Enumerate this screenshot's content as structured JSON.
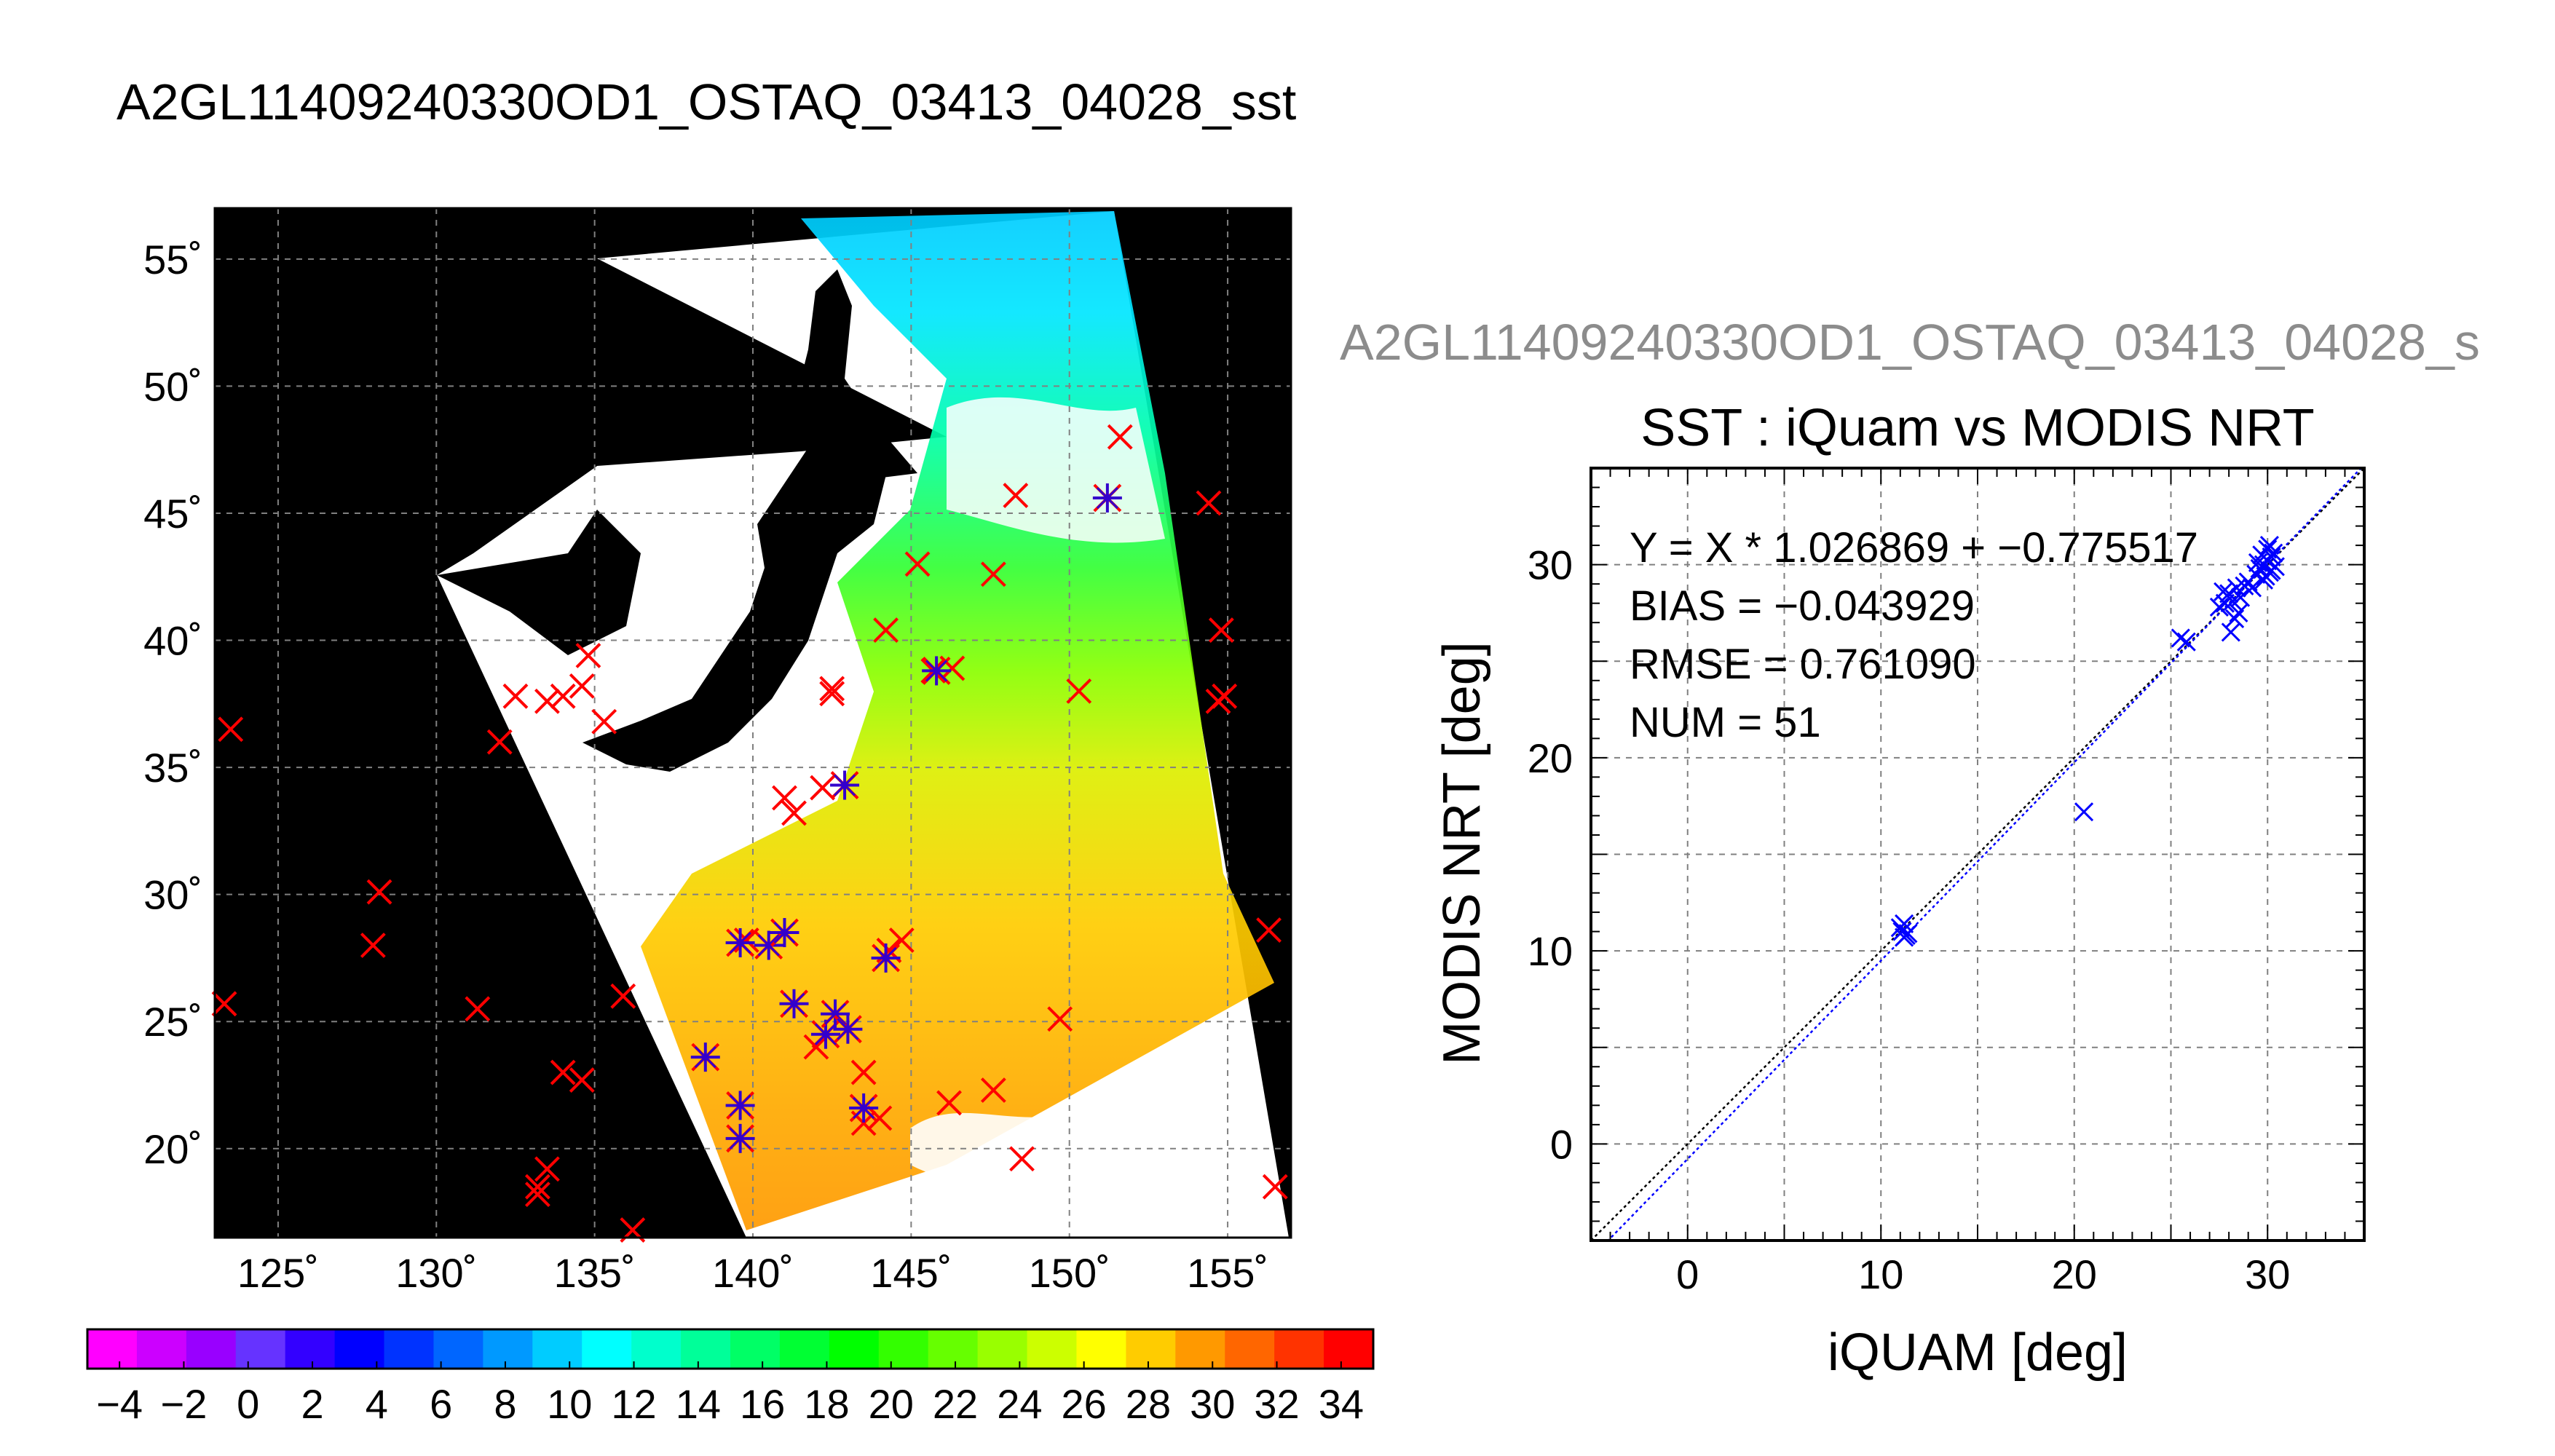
{
  "page_title": "A2GL11409240330OD1_OSTAQ_03413_04028_sst",
  "grey_title": "A2GL11409240330OD1_OSTAQ_03413_04028_s",
  "colors": {
    "background": "#ffffff",
    "map_background": "#000000",
    "land": "#000000",
    "cloud": "#ffffff",
    "grid": "#808080",
    "red_marker": "#ff0000",
    "blue_marker": "#0000ff",
    "fit_line": "#0000ff",
    "identity_line": "#000000"
  },
  "chart_data": [
    {
      "type": "map",
      "lon_ticks": [
        125,
        130,
        135,
        140,
        145,
        150,
        155
      ],
      "lat_ticks": [
        20,
        25,
        30,
        35,
        40,
        45,
        50,
        55
      ],
      "lon_tick_labels": [
        "125˚",
        "130˚",
        "135˚",
        "140˚",
        "145˚",
        "150˚",
        "155˚"
      ],
      "lat_tick_labels": [
        "20˚",
        "25˚",
        "30˚",
        "35˚",
        "40˚",
        "45˚",
        "50˚",
        "55˚"
      ],
      "lon_range": [
        123,
        157
      ],
      "lat_range": [
        16.5,
        57
      ],
      "grid": true,
      "colorbar": {
        "range": [
          -5,
          35
        ],
        "tick_values": [
          -4,
          -2,
          0,
          2,
          4,
          6,
          8,
          10,
          12,
          14,
          16,
          18,
          20,
          22,
          24,
          26,
          28,
          30,
          32,
          34
        ],
        "tick_labels": [
          "−4",
          "−2",
          "0",
          "2",
          "4",
          "6",
          "8",
          "10",
          "12",
          "14",
          "16",
          "18",
          "20",
          "22",
          "24",
          "26",
          "28",
          "30",
          "32",
          "34"
        ],
        "colors": [
          "#ff00ff",
          "#cc00ff",
          "#9900ff",
          "#6633ff",
          "#3300ff",
          "#0000ff",
          "#0033ff",
          "#0066ff",
          "#0099ff",
          "#00ccff",
          "#00ffff",
          "#00ffcc",
          "#00ff99",
          "#00ff66",
          "#00ff33",
          "#00ff00",
          "#33ff00",
          "#66ff00",
          "#99ff00",
          "#ccff00",
          "#ffff00",
          "#ffcc00",
          "#ff9900",
          "#ff6600",
          "#ff3300",
          "#ff0000"
        ]
      },
      "red_markers": [
        [
          123.5,
          36.5
        ],
        [
          123.3,
          25.7
        ],
        [
          128.2,
          30.1
        ],
        [
          128,
          28
        ],
        [
          131.3,
          25.5
        ],
        [
          132,
          36
        ],
        [
          132.5,
          37.8
        ],
        [
          133.5,
          37.6
        ],
        [
          134,
          37.8
        ],
        [
          134.6,
          38.2
        ],
        [
          134.8,
          39.4
        ],
        [
          135.3,
          36.8
        ],
        [
          133.2,
          18.2
        ],
        [
          133.2,
          18.5
        ],
        [
          133.5,
          19.2
        ],
        [
          134,
          23
        ],
        [
          134.6,
          22.7
        ],
        [
          135.9,
          26
        ],
        [
          136.2,
          16.8
        ],
        [
          139.8,
          28.2
        ],
        [
          141,
          33.8
        ],
        [
          141.3,
          33.2
        ],
        [
          142.5,
          38.1
        ],
        [
          142.5,
          37.9
        ],
        [
          142,
          24
        ],
        [
          143.5,
          23
        ],
        [
          143.5,
          21
        ],
        [
          144,
          21.2
        ],
        [
          144.3,
          27.8
        ],
        [
          144.7,
          28.2
        ],
        [
          144.2,
          40.4
        ],
        [
          145.2,
          43
        ],
        [
          145.7,
          38.8
        ],
        [
          146.3,
          38.9
        ],
        [
          147.6,
          42.6
        ],
        [
          146.2,
          21.8
        ],
        [
          147.6,
          22.3
        ],
        [
          148.3,
          45.7
        ],
        [
          148.5,
          19.6
        ],
        [
          149.7,
          25.1
        ],
        [
          150.3,
          38
        ],
        [
          151.6,
          48
        ],
        [
          154.4,
          45.4
        ],
        [
          154.8,
          40.4
        ],
        [
          154.7,
          37.6
        ],
        [
          154.9,
          37.8
        ],
        [
          156.3,
          28.6
        ],
        [
          156.5,
          18.5
        ],
        [
          142.2,
          34.2
        ]
      ],
      "blue_markers": [
        [
          139.6,
          28.1
        ],
        [
          140.5,
          28
        ],
        [
          141,
          28.5
        ],
        [
          141.3,
          25.7
        ],
        [
          142.3,
          24.5
        ],
        [
          142.6,
          25.3
        ],
        [
          143,
          24.7
        ],
        [
          142.9,
          34.3
        ],
        [
          138.5,
          23.6
        ],
        [
          139.6,
          21.7
        ],
        [
          139.6,
          20.4
        ],
        [
          143.5,
          21.6
        ],
        [
          144.2,
          27.5
        ],
        [
          145.8,
          38.8
        ],
        [
          151.2,
          45.6
        ]
      ]
    },
    {
      "type": "scatter",
      "title": "SST : iQuam vs MODIS NRT",
      "xlabel": "iQUAM [deg]",
      "ylabel": "MODIS NRT [deg]",
      "xlim": [
        -5,
        35
      ],
      "ylim": [
        -5,
        35
      ],
      "x_ticks": [
        0,
        10,
        20,
        30
      ],
      "y_ticks": [
        0,
        10,
        20,
        30
      ],
      "grid": true,
      "annotations": [
        "Y = X * 1.026869 + −0.775517",
        "BIAS = −0.043929",
        "RMSE = 0.761090",
        "NUM = 51"
      ],
      "fit": {
        "slope": 1.026869,
        "intercept": -0.775517
      },
      "points": [
        [
          11.2,
          11.4
        ],
        [
          11.1,
          11.0
        ],
        [
          11.3,
          10.8
        ],
        [
          11.0,
          11.2
        ],
        [
          11.4,
          10.9
        ],
        [
          11.2,
          10.7
        ],
        [
          20.5,
          17.2
        ],
        [
          25.5,
          26.2
        ],
        [
          25.8,
          26.0
        ],
        [
          27.5,
          27.8
        ],
        [
          27.8,
          28.0
        ],
        [
          28.0,
          28.5
        ],
        [
          28.2,
          28.1
        ],
        [
          28.4,
          28.8
        ],
        [
          28.6,
          28.3
        ],
        [
          28.8,
          28.9
        ],
        [
          29.0,
          29.1
        ],
        [
          28.1,
          26.5
        ],
        [
          28.5,
          27.5
        ],
        [
          27.7,
          28.6
        ],
        [
          28.3,
          27.2
        ],
        [
          29.2,
          28.8
        ],
        [
          29.4,
          29.5
        ],
        [
          29.6,
          29.8
        ],
        [
          29.8,
          30.0
        ],
        [
          30.0,
          30.2
        ],
        [
          30.1,
          29.6
        ],
        [
          30.2,
          30.4
        ],
        [
          29.9,
          29.4
        ],
        [
          30.3,
          30.6
        ],
        [
          30.0,
          30.8
        ],
        [
          29.7,
          30.5
        ],
        [
          30.4,
          29.9
        ],
        [
          29.5,
          30.1
        ],
        [
          30.1,
          31.0
        ],
        [
          29.8,
          29.2
        ],
        [
          30.2,
          29.7
        ]
      ]
    }
  ]
}
